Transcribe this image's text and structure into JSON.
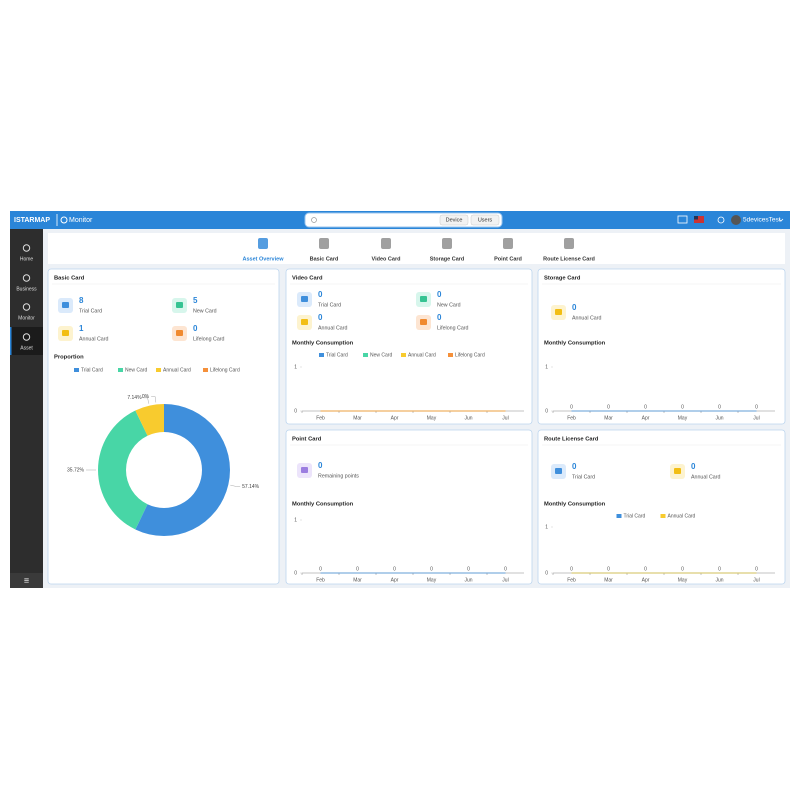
{
  "header": {
    "logo": "ISTARMAP",
    "app": "Monitor",
    "search_buttons": [
      "Device",
      "Users"
    ],
    "user": "5devicesTest"
  },
  "sidebar": [
    "Home",
    "Business",
    "Monitor",
    "Asset"
  ],
  "tabs": [
    "Asset Overview",
    "Basic Card",
    "Video Card",
    "Storage Card",
    "Point Card",
    "Route License Card"
  ],
  "panels": [
    {
      "title": "Basic Card",
      "items": [
        {
          "value": 8,
          "label": "Trial Card"
        },
        {
          "value": 5,
          "label": "New Card"
        },
        {
          "value": 1,
          "label": "Annual Card"
        },
        {
          "value": 0,
          "label": "Lifelong Card"
        }
      ]
    },
    {
      "title": "Video Card",
      "items": [
        {
          "value": 0,
          "label": "Trial Card"
        },
        {
          "value": 0,
          "label": "New Card"
        },
        {
          "value": 0,
          "label": "Annual Card"
        },
        {
          "value": 0,
          "label": "Lifelong Card"
        }
      ]
    },
    {
      "title": "Storage Card",
      "items": [
        {
          "value": 0,
          "label": "Annual Card"
        }
      ]
    },
    {
      "title": "Point Card",
      "items": [
        {
          "value": 0,
          "label": "Remaining points"
        }
      ]
    },
    {
      "title": "Route License Card",
      "items": [
        {
          "value": 0,
          "label": "Trial Card"
        },
        {
          "value": 0,
          "label": "Annual Card"
        }
      ]
    }
  ],
  "chart_data": [
    {
      "type": "pie",
      "title": "Proportion",
      "donut": true,
      "categories": [
        "Trial Card",
        "New Card",
        "Annual Card",
        "Lifelong Card"
      ],
      "values": [
        57.14,
        35.72,
        7.14,
        0
      ],
      "value_labels": [
        "57.14%",
        "35.72%",
        "7.14%",
        "0%"
      ],
      "colors": [
        "#3f8fdc",
        "#48d6a6",
        "#f8cb2e",
        "#f5903a"
      ]
    },
    {
      "type": "line",
      "title": "Monthly Consumption",
      "categories": [
        "Feb",
        "Mar",
        "Apr",
        "May",
        "Jun",
        "Jul"
      ],
      "series": [
        {
          "name": "Trial Card",
          "color": "#3f8fdc",
          "values": [
            0,
            0,
            0,
            0,
            0,
            0
          ]
        },
        {
          "name": "New Card",
          "color": "#48d6a6",
          "values": [
            0,
            0,
            0,
            0,
            0,
            0
          ]
        },
        {
          "name": "Annual Card",
          "color": "#f8cb2e",
          "values": [
            0,
            0,
            0,
            0,
            0,
            0
          ]
        },
        {
          "name": "Lifelong Card",
          "color": "#f5903a",
          "values": [
            0,
            0,
            0,
            0,
            0,
            0
          ]
        }
      ],
      "ylim": [
        0,
        1
      ],
      "yticks": [
        0,
        1
      ]
    },
    {
      "type": "line",
      "title": "Monthly Consumption",
      "categories": [
        "Feb",
        "Mar",
        "Apr",
        "May",
        "Jun",
        "Jul"
      ],
      "values": [
        0,
        0,
        0,
        0,
        0,
        0
      ],
      "color": "#3f8fdc",
      "value_labels_shown": true,
      "ylim": [
        0,
        1
      ],
      "yticks": [
        0,
        1
      ]
    },
    {
      "type": "line",
      "title": "Monthly Consumption",
      "categories": [
        "Feb",
        "Mar",
        "Apr",
        "May",
        "Jun",
        "Jul"
      ],
      "values": [
        0,
        0,
        0,
        0,
        0,
        0
      ],
      "color": "#3f8fdc",
      "value_labels_shown": true,
      "ylim": [
        0,
        1
      ],
      "yticks": [
        0,
        1
      ]
    },
    {
      "type": "line",
      "title": "Monthly Consumption",
      "categories": [
        "Feb",
        "Mar",
        "Apr",
        "May",
        "Jun",
        "Jul"
      ],
      "series": [
        {
          "name": "Trial Card",
          "color": "#3f8fdc",
          "values": [
            0,
            0,
            0,
            0,
            0,
            0
          ]
        },
        {
          "name": "Annual Card",
          "color": "#f8cb2e",
          "values": [
            0,
            0,
            0,
            0,
            0,
            0
          ]
        }
      ],
      "value_labels_shown": true,
      "ylim": [
        0,
        1
      ],
      "yticks": [
        0,
        1
      ]
    }
  ]
}
